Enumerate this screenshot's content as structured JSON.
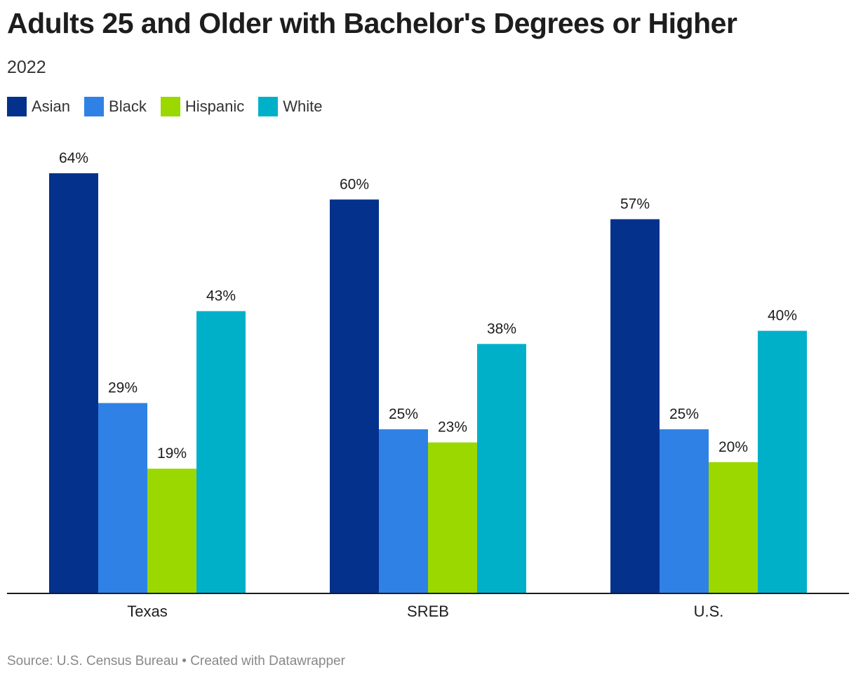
{
  "title": "Adults 25 and Older with Bachelor's Degrees or Higher",
  "subtitle": "2022",
  "footer": {
    "source": "Source: U.S. Census Bureau",
    "separator": " • ",
    "credit": "Created with Datawrapper"
  },
  "chart_data": {
    "type": "bar",
    "title": "Adults 25 and Older with Bachelor's Degrees or Higher",
    "subtitle": "2022",
    "categories": [
      "Texas",
      "SREB",
      "U.S."
    ],
    "series": [
      {
        "name": "Asian",
        "color": "#03318c",
        "values": [
          64,
          60,
          57
        ]
      },
      {
        "name": "Black",
        "color": "#2f81e5",
        "values": [
          29,
          25,
          25
        ]
      },
      {
        "name": "Hispanic",
        "color": "#9ad800",
        "values": [
          19,
          23,
          20
        ]
      },
      {
        "name": "White",
        "color": "#00b0c9",
        "values": [
          43,
          38,
          40
        ]
      }
    ],
    "value_suffix": "%",
    "ylim": [
      0,
      64
    ],
    "grid": false,
    "legend": "top-left",
    "xlabel": "",
    "ylabel": ""
  }
}
